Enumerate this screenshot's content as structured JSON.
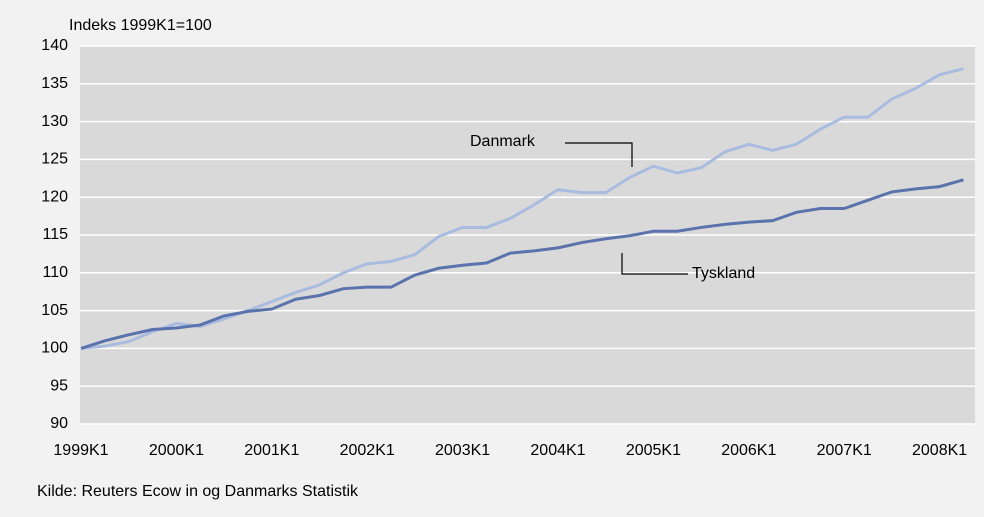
{
  "chart_data": {
    "type": "line",
    "ylabel": "Indeks 1999K1=100",
    "source": "Kilde: Reuters Ecow in og Danmarks Statistik",
    "categories": [
      "1999K1",
      null,
      null,
      null,
      "2000K1",
      null,
      null,
      null,
      "2001K1",
      null,
      null,
      null,
      "2002K1",
      null,
      null,
      null,
      "2003K1",
      null,
      null,
      null,
      "2004K1",
      null,
      null,
      null,
      "2005K1",
      null,
      null,
      null,
      "2006K1",
      null,
      null,
      null,
      "2007K1",
      null,
      null,
      null,
      "2008K1",
      null
    ],
    "series": [
      {
        "name": "Danmark",
        "color": "#a9bbdf",
        "values": [
          100,
          100.3,
          100.9,
          102.2,
          103.3,
          102.9,
          103.9,
          105,
          106.2,
          107.4,
          108.4,
          110,
          111.2,
          111.5,
          112.4,
          114.8,
          116,
          116,
          117.2,
          119,
          121,
          120.6,
          120.6,
          122.6,
          124.1,
          123.2,
          123.9,
          126,
          127,
          126.2,
          127,
          129,
          130.6,
          130.6,
          133,
          134.4,
          136.2,
          137
        ]
      },
      {
        "name": "Tyskland",
        "color": "#5b73ad",
        "values": [
          100,
          101,
          101.8,
          102.5,
          102.7,
          103.1,
          104.3,
          104.9,
          105.2,
          106.5,
          107,
          107.9,
          108.1,
          108.1,
          109.7,
          110.6,
          111,
          111.3,
          112.6,
          112.9,
          113.3,
          114,
          114.5,
          114.9,
          115.5,
          115.5,
          116,
          116.4,
          116.7,
          116.9,
          118,
          118.5,
          118.5,
          119.6,
          120.7,
          121.1,
          121.4,
          122.3
        ]
      }
    ],
    "ylim": [
      90,
      140
    ],
    "yticks": [
      90,
      95,
      100,
      105,
      110,
      115,
      120,
      125,
      130,
      135,
      140
    ],
    "grid": true
  }
}
